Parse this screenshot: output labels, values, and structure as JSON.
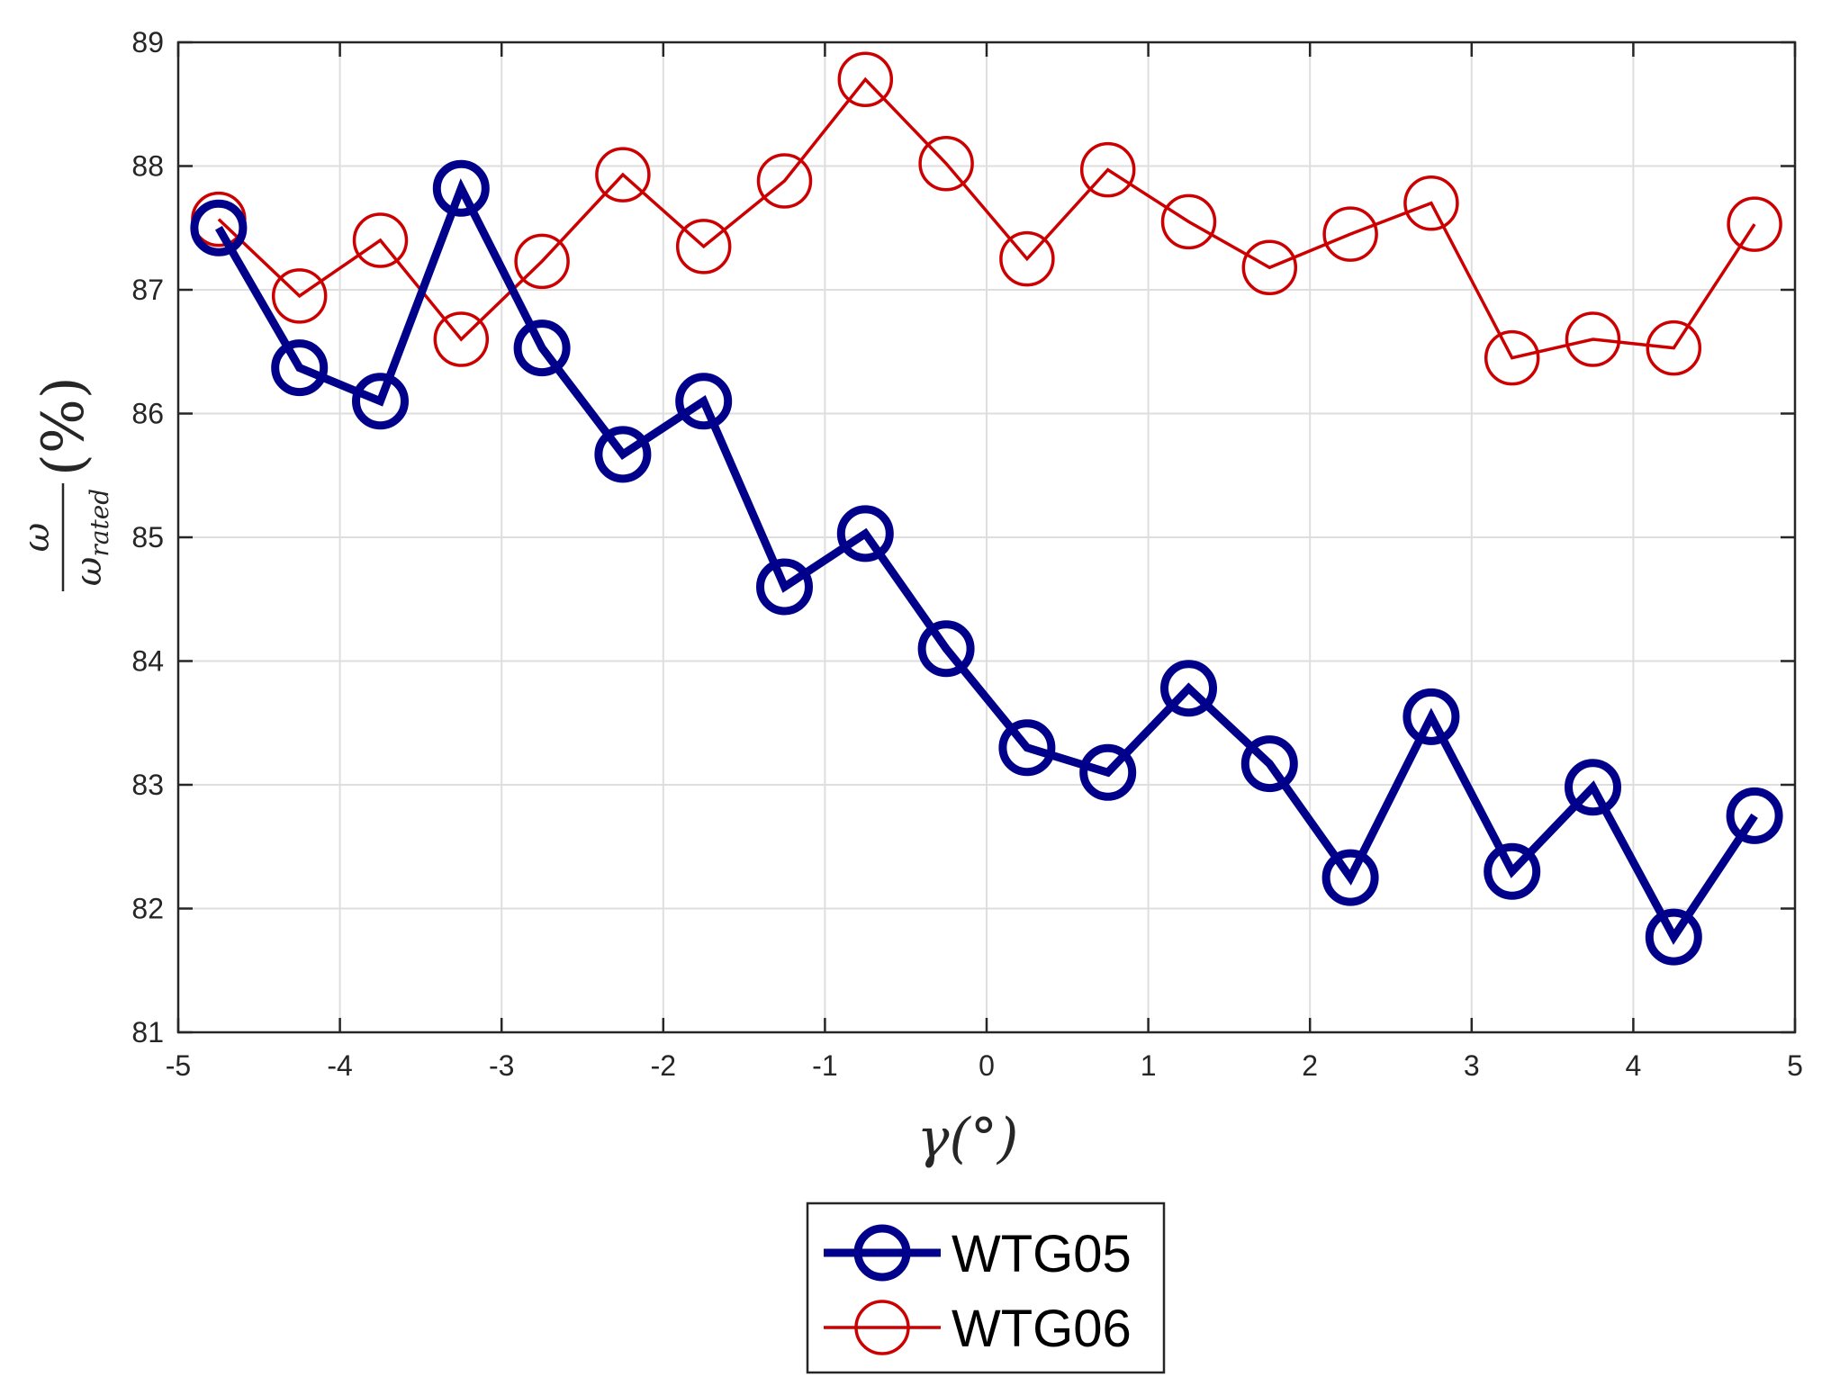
{
  "chart_data": {
    "type": "line",
    "title": "",
    "xlabel": "γ(°)",
    "ylabel": {
      "numerator": "ω",
      "denominator": "ωrated",
      "denominator_base": "ω",
      "denominator_sub": "rated",
      "unit": "(%)"
    },
    "xlim": [
      -5,
      5
    ],
    "ylim": [
      81,
      89
    ],
    "xticks": [
      -5,
      -4,
      -3,
      -2,
      -1,
      0,
      1,
      2,
      3,
      4,
      5
    ],
    "yticks": [
      81,
      82,
      83,
      84,
      85,
      86,
      87,
      88,
      89
    ],
    "xtick_labels": [
      "-5",
      "-4",
      "-3",
      "-2",
      "-1",
      "0",
      "1",
      "2",
      "3",
      "4",
      "5"
    ],
    "ytick_labels": [
      "81",
      "82",
      "83",
      "84",
      "85",
      "86",
      "87",
      "88",
      "89"
    ],
    "grid": true,
    "legend_position": "below",
    "x": [
      -4.75,
      -4.25,
      -3.75,
      -3.25,
      -2.75,
      -2.25,
      -1.75,
      -1.25,
      -0.75,
      -0.25,
      0.25,
      0.75,
      1.25,
      1.75,
      2.25,
      2.75,
      3.25,
      3.75,
      4.25,
      4.75
    ],
    "series": [
      {
        "name": "WTG05",
        "color": "#00008b",
        "marker": "circle",
        "line_style": "thick",
        "values": [
          87.5,
          86.37,
          86.1,
          87.82,
          86.53,
          85.67,
          86.1,
          84.6,
          85.03,
          84.1,
          83.3,
          83.1,
          83.78,
          83.17,
          82.25,
          83.55,
          82.3,
          82.98,
          81.77,
          82.75
        ]
      },
      {
        "name": "WTG06",
        "color": "#cc0000",
        "marker": "circle",
        "line_style": "thin",
        "values": [
          87.57,
          86.95,
          87.4,
          86.6,
          87.23,
          87.93,
          87.35,
          87.88,
          88.7,
          88.02,
          87.25,
          87.97,
          87.55,
          87.18,
          87.45,
          87.7,
          86.45,
          86.6,
          86.53,
          87.53
        ]
      }
    ]
  }
}
